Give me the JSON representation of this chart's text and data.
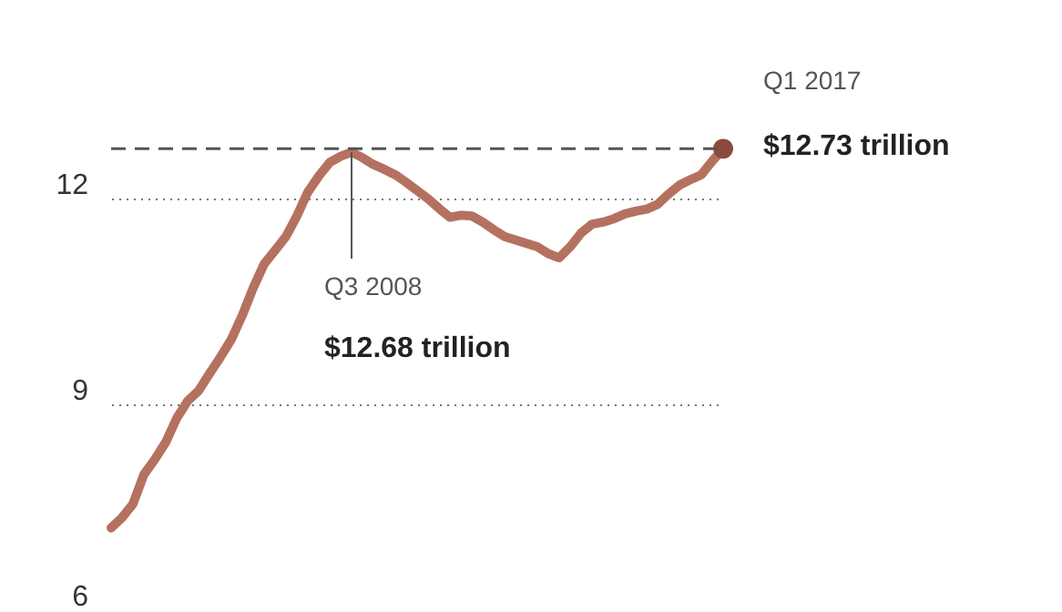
{
  "chart_data": {
    "type": "line",
    "categories": [
      null,
      null,
      null,
      null,
      null,
      null,
      null,
      null,
      null,
      null,
      null,
      null,
      null,
      null,
      null,
      null,
      null,
      null,
      null,
      null,
      null,
      null,
      null,
      null,
      null,
      null,
      null,
      null,
      null,
      null,
      null,
      null,
      null,
      null,
      null,
      null,
      null,
      null,
      null,
      null,
      null,
      null,
      null,
      null,
      null,
      null,
      null,
      null,
      null,
      null,
      null,
      null,
      null,
      null,
      null,
      null,
      null
    ],
    "series": [
      {
        "color": "#b5715f",
        "values": [
          7.2,
          7.35,
          7.55,
          7.98,
          8.2,
          8.45,
          8.8,
          9.05,
          9.2,
          9.45,
          9.69,
          9.95,
          10.3,
          10.7,
          11.05,
          11.25,
          11.45,
          11.75,
          12.1,
          12.33,
          12.53,
          12.62,
          12.68,
          12.6,
          12.5,
          12.43,
          12.35,
          12.24,
          12.12,
          12.0,
          11.86,
          11.73,
          11.76,
          11.75,
          11.66,
          11.55,
          11.45,
          11.4,
          11.35,
          11.3,
          11.2,
          11.14,
          11.3,
          11.5,
          11.63,
          11.66,
          11.71,
          11.78,
          11.82,
          11.85,
          11.92,
          12.07,
          12.2,
          12.28,
          12.35,
          12.55,
          12.73
        ]
      },
      {
        "type": "scatter",
        "color": "#8b4a3e",
        "values": [
          null,
          null,
          null,
          null,
          null,
          null,
          null,
          null,
          null,
          null,
          null,
          null,
          null,
          null,
          null,
          null,
          null,
          null,
          null,
          null,
          null,
          null,
          null,
          null,
          null,
          null,
          null,
          null,
          null,
          null,
          null,
          null,
          null,
          null,
          null,
          null,
          null,
          null,
          null,
          null,
          null,
          null,
          null,
          null,
          null,
          null,
          null,
          null,
          null,
          null,
          null,
          null,
          null,
          null,
          null,
          null,
          12.73
        ]
      }
    ],
    "ylim": [
      6,
      14.9
    ],
    "yticks": [
      6,
      9,
      12
    ],
    "grid": "y",
    "tick_labels": "y",
    "ref_lines": [
      {
        "axis": "y",
        "value": 12.73,
        "line_style": "dashed",
        "color": "#555555"
      }
    ],
    "annotations": [
      "Q3 2008",
      "$12.68 trillion",
      "Q1 2017",
      "$12.73 trillion"
    ]
  }
}
